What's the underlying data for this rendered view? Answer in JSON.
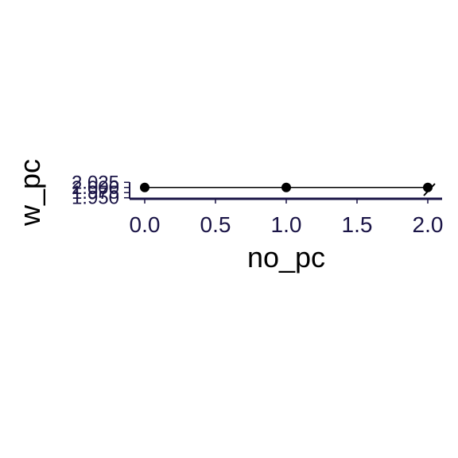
{
  "chart_data": {
    "type": "scatter",
    "title": "",
    "xlabel": "no_pc",
    "ylabel": "w_pc",
    "x_ticks": [
      "0.0",
      "0.5",
      "1.0",
      "1.5",
      "2.0"
    ],
    "y_ticks": [
      "1.950",
      "1.975",
      "2.000",
      "2.025"
    ],
    "xlim": [
      -0.05,
      2.05
    ],
    "ylim": [
      1.945,
      2.03
    ],
    "points": [
      {
        "x": 0,
        "y": 2.0
      },
      {
        "x": 1,
        "y": 2.0
      },
      {
        "x": 2,
        "y": 2.0
      }
    ],
    "fit_line": {
      "x": [
        0,
        2
      ],
      "y": [
        2.0,
        2.0
      ]
    },
    "grid": false,
    "colors": {
      "axis": "#1a1446",
      "point": "#000000",
      "tick_text": "#1a1446",
      "title_text": "#000000"
    }
  }
}
